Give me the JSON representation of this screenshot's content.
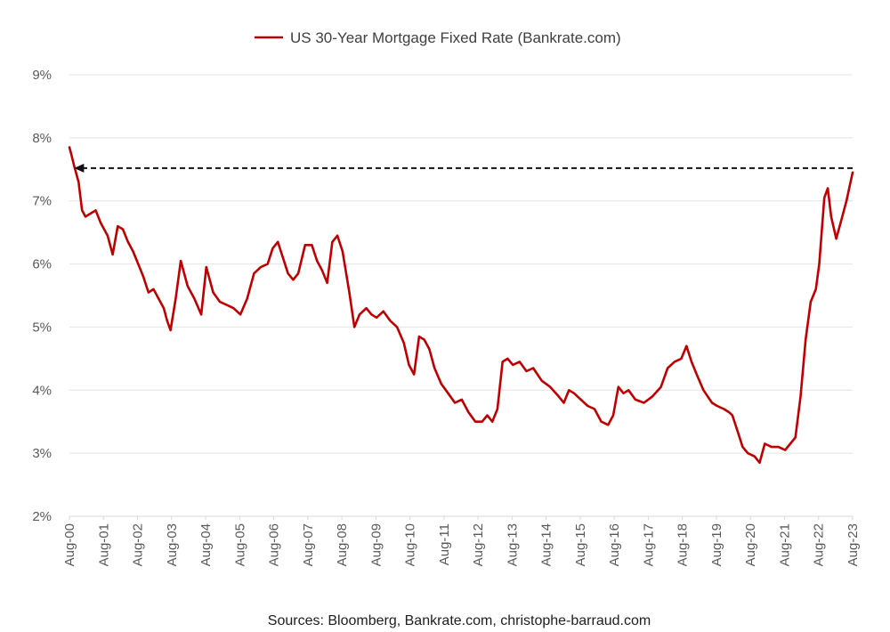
{
  "chart_data": {
    "type": "line",
    "legend": {
      "label": "US 30-Year Mortgage Fixed Rate (Bankrate.com)",
      "position": "top-center"
    },
    "source": "Sources: Bloomberg, Bankrate.com, christophe-barraud.com",
    "series": [
      {
        "name": "US 30-Year Mortgage Fixed Rate (Bankrate.com)",
        "color": "#C00000",
        "x": [
          2000.58,
          2000.63,
          2000.72,
          2000.85,
          2000.95,
          2001.05,
          2001.2,
          2001.35,
          2001.5,
          2001.7,
          2001.85,
          2002.0,
          2002.15,
          2002.3,
          2002.45,
          2002.6,
          2002.75,
          2002.9,
          2003.05,
          2003.2,
          2003.35,
          2003.45,
          2003.55,
          2003.7,
          2003.85,
          2004.05,
          2004.25,
          2004.45,
          2004.6,
          2004.8,
          2005.0,
          2005.2,
          2005.4,
          2005.6,
          2005.8,
          2006.0,
          2006.2,
          2006.4,
          2006.55,
          2006.7,
          2006.85,
          2007.0,
          2007.15,
          2007.3,
          2007.5,
          2007.7,
          2007.85,
          2008.0,
          2008.15,
          2008.3,
          2008.45,
          2008.6,
          2008.8,
          2008.95,
          2009.1,
          2009.3,
          2009.45,
          2009.6,
          2009.8,
          2010.0,
          2010.2,
          2010.4,
          2010.55,
          2010.7,
          2010.85,
          2011.0,
          2011.15,
          2011.3,
          2011.5,
          2011.7,
          2011.9,
          2012.1,
          2012.3,
          2012.5,
          2012.7,
          2012.85,
          2013.0,
          2013.15,
          2013.3,
          2013.45,
          2013.6,
          2013.8,
          2014.0,
          2014.2,
          2014.45,
          2014.7,
          2014.95,
          2015.1,
          2015.25,
          2015.4,
          2015.6,
          2015.8,
          2016.0,
          2016.2,
          2016.4,
          2016.55,
          2016.7,
          2016.85,
          2017.0,
          2017.2,
          2017.45,
          2017.7,
          2017.95,
          2018.15,
          2018.35,
          2018.55,
          2018.7,
          2018.85,
          2019.0,
          2019.2,
          2019.45,
          2019.6,
          2019.8,
          2019.95,
          2020.05,
          2020.2,
          2020.35,
          2020.5,
          2020.7,
          2020.85,
          2021.0,
          2021.2,
          2021.4,
          2021.6,
          2021.75,
          2021.9,
          2022.05,
          2022.2,
          2022.35,
          2022.5,
          2022.6,
          2022.75,
          2022.85,
          2022.95,
          2023.1,
          2023.25,
          2023.4,
          2023.5,
          2023.58
        ],
        "y": [
          7.85,
          7.75,
          7.55,
          7.3,
          6.85,
          6.75,
          6.8,
          6.85,
          6.65,
          6.45,
          6.15,
          6.6,
          6.55,
          6.35,
          6.2,
          6.0,
          5.8,
          5.55,
          5.6,
          5.45,
          5.3,
          5.1,
          4.95,
          5.45,
          6.05,
          5.65,
          5.45,
          5.2,
          5.95,
          5.55,
          5.4,
          5.35,
          5.3,
          5.2,
          5.45,
          5.85,
          5.95,
          6.0,
          6.25,
          6.35,
          6.1,
          5.85,
          5.75,
          5.85,
          6.3,
          6.3,
          6.05,
          5.9,
          5.7,
          6.35,
          6.45,
          6.2,
          5.55,
          5.0,
          5.2,
          5.3,
          5.2,
          5.15,
          5.25,
          5.1,
          5.0,
          4.75,
          4.4,
          4.25,
          4.85,
          4.8,
          4.65,
          4.35,
          4.1,
          3.95,
          3.8,
          3.85,
          3.65,
          3.5,
          3.5,
          3.6,
          3.5,
          3.7,
          4.45,
          4.5,
          4.4,
          4.45,
          4.3,
          4.35,
          4.15,
          4.05,
          3.9,
          3.8,
          4.0,
          3.95,
          3.85,
          3.75,
          3.7,
          3.5,
          3.45,
          3.6,
          4.05,
          3.95,
          4.0,
          3.85,
          3.8,
          3.9,
          4.05,
          4.35,
          4.45,
          4.5,
          4.7,
          4.45,
          4.25,
          4.0,
          3.8,
          3.75,
          3.7,
          3.65,
          3.6,
          3.35,
          3.1,
          3.0,
          2.95,
          2.85,
          3.15,
          3.1,
          3.1,
          3.05,
          3.15,
          3.25,
          3.9,
          4.8,
          5.4,
          5.6,
          6.0,
          7.05,
          7.2,
          6.75,
          6.4,
          6.7,
          7.0,
          7.25,
          7.45
        ]
      }
    ],
    "annotation": {
      "type": "dashed-arrow",
      "from": {
        "x": 2023.58,
        "y": 7.52
      },
      "to": {
        "x": 2000.72,
        "y": 7.52
      }
    },
    "xaxis": {
      "ticks": [
        2000.58,
        2001.58,
        2002.58,
        2003.58,
        2004.58,
        2005.58,
        2006.58,
        2007.58,
        2008.58,
        2009.58,
        2010.58,
        2011.58,
        2012.58,
        2013.58,
        2014.58,
        2015.58,
        2016.58,
        2017.58,
        2018.58,
        2019.58,
        2020.58,
        2021.58,
        2022.58,
        2023.58
      ],
      "tick_labels": [
        "Aug-00",
        "Aug-01",
        "Aug-02",
        "Aug-03",
        "Aug-04",
        "Aug-05",
        "Aug-06",
        "Aug-07",
        "Aug-08",
        "Aug-09",
        "Aug-10",
        "Aug-11",
        "Aug-12",
        "Aug-13",
        "Aug-14",
        "Aug-15",
        "Aug-16",
        "Aug-17",
        "Aug-18",
        "Aug-19",
        "Aug-20",
        "Aug-21",
        "Aug-22",
        "Aug-23"
      ],
      "range": [
        2000.58,
        2023.58
      ]
    },
    "yaxis": {
      "ticks": [
        2,
        3,
        4,
        5,
        6,
        7,
        8,
        9
      ],
      "tick_labels": [
        "2%",
        "3%",
        "4%",
        "5%",
        "6%",
        "7%",
        "8%",
        "9%"
      ],
      "range": [
        2,
        9
      ]
    },
    "grid": true
  }
}
